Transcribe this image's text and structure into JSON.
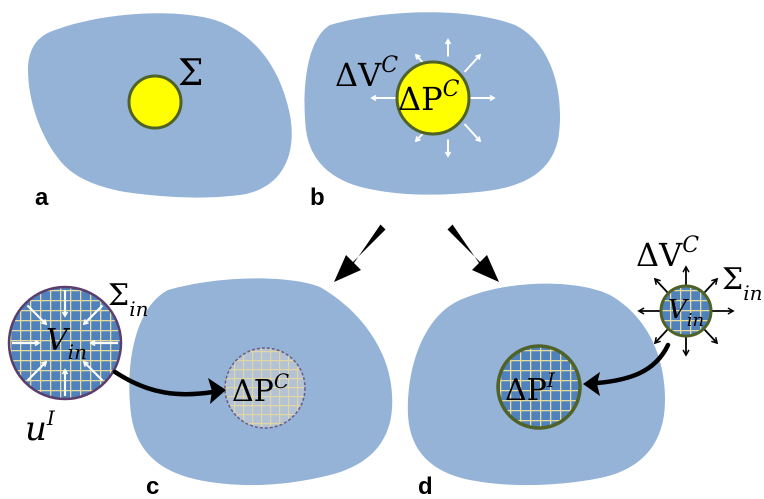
{
  "colors": {
    "body": "#95b3d7",
    "inclusion_yellow": "#ffff00",
    "inclusion_border": "#4f6228",
    "grid_blue": "#4f81bd",
    "grid_line": "#e8dc9c",
    "faded_grid_bg": "#b3c2d4",
    "dark_border": "#5a3e6e",
    "arrow_white": "#ffffff",
    "arrow_black": "#000000"
  },
  "panels": {
    "a": {
      "label": "a",
      "sigma": "Σ"
    },
    "b": {
      "label": "b",
      "delta_v": "ΔV",
      "delta_v_sup": "C",
      "delta_p": "ΔP",
      "delta_p_sup": "C"
    },
    "c": {
      "label": "c",
      "sigma": "Σ",
      "sigma_sub": "in",
      "v": "V",
      "v_sub": "in",
      "u": "u",
      "u_sup": "I",
      "delta_p": "ΔP",
      "delta_p_sup": "C"
    },
    "d": {
      "label": "d",
      "delta_v": "ΔV",
      "delta_v_sup": "C",
      "sigma": "Σ",
      "sigma_sub": "in",
      "v": "V",
      "v_sub": "in",
      "delta_p": "ΔP",
      "delta_p_sup": "I"
    }
  }
}
